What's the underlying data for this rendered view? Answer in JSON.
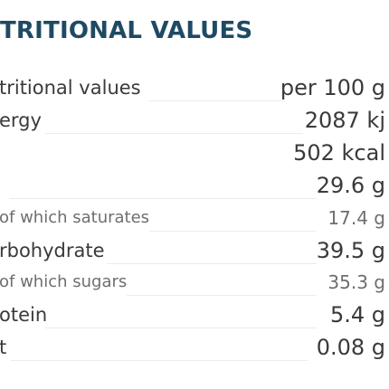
{
  "title": "TRITIONAL VALUES",
  "rows": [
    {
      "label": "tritional values",
      "value": "per 100 g"
    },
    {
      "label": "ergy",
      "value": "2087 kj"
    },
    {
      "label": "",
      "value": "502 kcal"
    },
    {
      "label": "",
      "value": "29.6 g"
    },
    {
      "label": "of which saturates",
      "value": "17.4 g"
    },
    {
      "label": "rbohydrate",
      "value": "39.5 g"
    },
    {
      "label": "of which sugars",
      "value": "35.3 g"
    },
    {
      "label": "otein",
      "value": "5.4 g"
    },
    {
      "label": "t",
      "value": "0.08 g"
    }
  ],
  "colors": {
    "title": "#1f4a63",
    "text": "#3a3a3a",
    "subtext": "#6e6e6e",
    "rule": "#ececec"
  }
}
